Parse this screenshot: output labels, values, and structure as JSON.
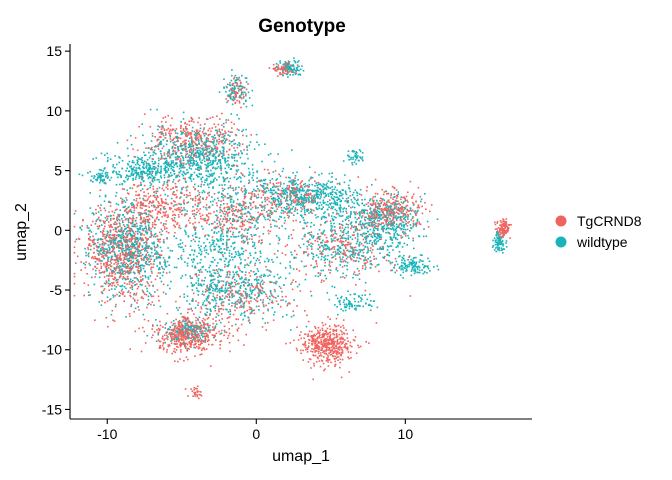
{
  "chart_data": {
    "type": "scatter",
    "title": "Genotype",
    "xlabel": "umap_1",
    "ylabel": "umap_2",
    "xlim": [
      -12.5,
      18.5
    ],
    "ylim": [
      -15.8,
      15.6
    ],
    "x_ticks": [
      -10,
      0,
      10
    ],
    "y_ticks": [
      15,
      10,
      5,
      0,
      -5,
      -10,
      -15
    ],
    "grid": false,
    "legend_position": "right",
    "series": [
      {
        "name": "TgCRND8",
        "color": "#F0645F",
        "clusters": [
          {
            "cx": -9.0,
            "cy": -2.0,
            "sx": 1.3,
            "sy": 2.0,
            "n": 700
          },
          {
            "cx": -4.5,
            "cy": -8.8,
            "sx": 1.1,
            "sy": 0.7,
            "n": 450
          },
          {
            "cx": 4.8,
            "cy": -9.5,
            "sx": 0.9,
            "sy": 0.8,
            "n": 450
          },
          {
            "cx": -4.2,
            "cy": 7.5,
            "sx": 1.6,
            "sy": 1.0,
            "n": 350
          },
          {
            "cx": 9.0,
            "cy": 1.6,
            "sx": 1.0,
            "sy": 0.9,
            "n": 300
          },
          {
            "cx": -6.5,
            "cy": 2.0,
            "sx": 1.5,
            "sy": 1.2,
            "n": 300
          },
          {
            "cx": -1.0,
            "cy": 1.5,
            "sx": 2.0,
            "sy": 1.4,
            "n": 300
          },
          {
            "cx": 6.0,
            "cy": -1.5,
            "sx": 1.6,
            "sy": 1.4,
            "n": 250
          },
          {
            "cx": 16.6,
            "cy": 0.2,
            "sx": 0.22,
            "sy": 0.35,
            "n": 110
          },
          {
            "cx": -1.2,
            "cy": -5.5,
            "sx": 1.8,
            "sy": 1.2,
            "n": 250
          },
          {
            "cx": 1.8,
            "cy": 13.5,
            "sx": 0.35,
            "sy": 0.3,
            "n": 60
          },
          {
            "cx": -1.3,
            "cy": 11.5,
            "sx": 0.35,
            "sy": 0.5,
            "n": 60
          },
          {
            "cx": -4.0,
            "cy": -13.6,
            "sx": 0.25,
            "sy": 0.25,
            "n": 25
          },
          {
            "cx": 2.5,
            "cy": 3.0,
            "sx": 1.2,
            "sy": 0.8,
            "n": 150
          }
        ]
      },
      {
        "name": "wildtype",
        "color": "#18B4BA",
        "clusters": [
          {
            "cx": -8.6,
            "cy": -1.5,
            "sx": 1.3,
            "sy": 2.0,
            "n": 700
          },
          {
            "cx": -4.0,
            "cy": 6.0,
            "sx": 2.0,
            "sy": 1.4,
            "n": 650
          },
          {
            "cx": -7.5,
            "cy": 5.0,
            "sx": 1.6,
            "sy": 0.6,
            "n": 250
          },
          {
            "cx": -10.4,
            "cy": 4.4,
            "sx": 0.3,
            "sy": 0.25,
            "n": 50
          },
          {
            "cx": -1.5,
            "cy": -4.8,
            "sx": 2.0,
            "sy": 1.3,
            "n": 450
          },
          {
            "cx": 8.5,
            "cy": 0.5,
            "sx": 1.2,
            "sy": 1.2,
            "n": 450
          },
          {
            "cx": 5.0,
            "cy": 2.5,
            "sx": 1.2,
            "sy": 1.0,
            "n": 250
          },
          {
            "cx": 2.5,
            "cy": 3.0,
            "sx": 1.2,
            "sy": 0.8,
            "n": 250
          },
          {
            "cx": -1.0,
            "cy": 2.0,
            "sx": 2.0,
            "sy": 1.5,
            "n": 300
          },
          {
            "cx": 5.5,
            "cy": -1.5,
            "sx": 1.5,
            "sy": 1.3,
            "n": 250
          },
          {
            "cx": -2.5,
            "cy": -1.5,
            "sx": 1.5,
            "sy": 0.9,
            "n": 200
          },
          {
            "cx": 2.2,
            "cy": 13.6,
            "sx": 0.4,
            "sy": 0.3,
            "n": 90
          },
          {
            "cx": -1.3,
            "cy": 11.7,
            "sx": 0.4,
            "sy": 0.6,
            "n": 90
          },
          {
            "cx": 16.3,
            "cy": -1.0,
            "sx": 0.2,
            "sy": 0.4,
            "n": 80
          },
          {
            "cx": 6.6,
            "cy": 6.1,
            "sx": 0.3,
            "sy": 0.3,
            "n": 40
          },
          {
            "cx": 10.5,
            "cy": -3.0,
            "sx": 0.7,
            "sy": 0.4,
            "n": 120
          },
          {
            "cx": -4.5,
            "cy": -8.5,
            "sx": 0.9,
            "sy": 0.5,
            "n": 150
          },
          {
            "cx": 6.5,
            "cy": -6.0,
            "sx": 0.8,
            "sy": 0.4,
            "n": 80
          }
        ]
      }
    ]
  }
}
